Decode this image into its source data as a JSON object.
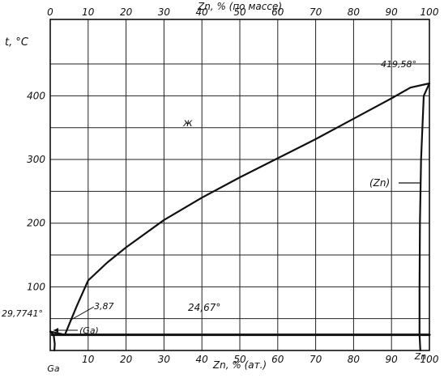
{
  "chart_data": {
    "type": "line",
    "title": "",
    "top_axis_title": "Zn, % (по массе)",
    "xlabel": "Zn, % (ат.)",
    "ylabel": "t, °C",
    "x_range": [
      0,
      100
    ],
    "y_range": [
      0,
      520
    ],
    "x_ticks": [
      0,
      10,
      20,
      30,
      40,
      50,
      60,
      70,
      80,
      90,
      100
    ],
    "y_ticks": [
      100,
      200,
      300,
      400
    ],
    "grid": true,
    "element_left": "Ga",
    "element_right": "Zn",
    "phase_labels": {
      "liquid": "ж",
      "ga_solid": "(Ga)",
      "zn_solid": "(Zn)"
    },
    "annotations": {
      "ga_melting": "29,7741°",
      "eutectic_comp": "3,87",
      "eutectic_temp": "24,67°",
      "zn_melting": "419,58°"
    },
    "series": [
      {
        "key": "liquidus",
        "points": [
          [
            0,
            29.77
          ],
          [
            3.87,
            24.67
          ],
          [
            7,
            70
          ],
          [
            10,
            110
          ],
          [
            15,
            138
          ],
          [
            20,
            162
          ],
          [
            30,
            205
          ],
          [
            40,
            240
          ],
          [
            50,
            272
          ],
          [
            60,
            302
          ],
          [
            70,
            332
          ],
          [
            80,
            364
          ],
          [
            90,
            396
          ],
          [
            95,
            413
          ],
          [
            100,
            419.58
          ]
        ]
      },
      {
        "key": "eutectic",
        "points": [
          [
            0.5,
            24.67
          ],
          [
            100,
            24.67
          ]
        ]
      },
      {
        "key": "ga_solvus",
        "points": [
          [
            0,
            29.77
          ],
          [
            0.9,
            24.67
          ],
          [
            1.2,
            10
          ],
          [
            1.1,
            0
          ]
        ]
      },
      {
        "key": "zn_solvus",
        "points": [
          [
            100,
            419.58
          ],
          [
            98.5,
            400
          ],
          [
            97.8,
            300
          ],
          [
            97.5,
            200
          ],
          [
            97.4,
            100
          ],
          [
            97.4,
            24.67
          ],
          [
            97.6,
            0
          ]
        ]
      }
    ]
  }
}
